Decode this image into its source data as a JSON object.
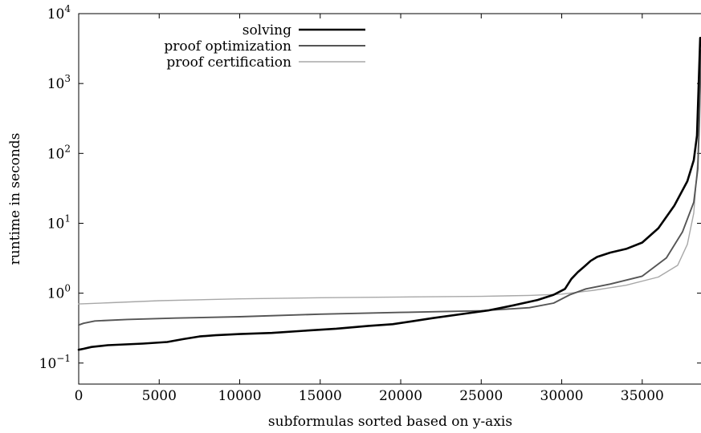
{
  "chart_data": {
    "type": "line",
    "title": "",
    "xlabel": "subformulas sorted based on y-axis",
    "ylabel": "runtime in seconds",
    "yscale": "log",
    "xlim": [
      0,
      38700
    ],
    "ylim": [
      0.05,
      10000
    ],
    "x_ticks": [
      0,
      5000,
      10000,
      15000,
      20000,
      25000,
      30000,
      35000
    ],
    "y_ticks": [
      {
        "value": 0.1,
        "base": "10",
        "exp": "−1"
      },
      {
        "value": 1,
        "base": "10",
        "exp": "0"
      },
      {
        "value": 10,
        "base": "10",
        "exp": "1"
      },
      {
        "value": 100,
        "base": "10",
        "exp": "2"
      },
      {
        "value": 1000,
        "base": "10",
        "exp": "3"
      },
      {
        "value": 10000,
        "base": "10",
        "exp": "4"
      }
    ],
    "grid": false,
    "legend_position": "top-left",
    "series": [
      {
        "name": "solving",
        "color": "#000000",
        "width": 2.6,
        "x": [
          0,
          300,
          800,
          1800,
          4000,
          5500,
          6500,
          7500,
          8500,
          10000,
          12000,
          14000,
          16000,
          18000,
          19500,
          20500,
          22000,
          24000,
          25500,
          27000,
          28500,
          29500,
          30200,
          30600,
          31000,
          31400,
          31800,
          32200,
          33000,
          34000,
          35000,
          36000,
          37000,
          37800,
          38200,
          38400,
          38500,
          38600
        ],
        "y": [
          0.155,
          0.16,
          0.17,
          0.18,
          0.19,
          0.2,
          0.22,
          0.24,
          0.25,
          0.26,
          0.27,
          0.29,
          0.31,
          0.34,
          0.36,
          0.39,
          0.44,
          0.51,
          0.57,
          0.67,
          0.8,
          0.95,
          1.15,
          1.6,
          2.0,
          2.4,
          2.9,
          3.3,
          3.8,
          4.3,
          5.3,
          8.5,
          18,
          40,
          80,
          180,
          900,
          4500
        ]
      },
      {
        "name": "proof optimization",
        "color": "#555555",
        "width": 1.9,
        "x": [
          0,
          300,
          1000,
          3000,
          6000,
          10000,
          15000,
          20000,
          25000,
          28000,
          29500,
          30500,
          31500,
          33000,
          35000,
          36500,
          37500,
          38200,
          38450,
          38550,
          38650
        ],
        "y": [
          0.35,
          0.37,
          0.4,
          0.42,
          0.44,
          0.46,
          0.5,
          0.53,
          0.56,
          0.62,
          0.72,
          0.95,
          1.15,
          1.35,
          1.75,
          3.2,
          7.5,
          20,
          60,
          300,
          3000
        ]
      },
      {
        "name": "proof certification",
        "color": "#a8a8a8",
        "width": 1.4,
        "x": [
          0,
          2000,
          5000,
          10000,
          15000,
          20000,
          25000,
          28000,
          30000,
          32000,
          34000,
          36000,
          37200,
          37800,
          38200,
          38450,
          38600,
          38700
        ],
        "y": [
          0.7,
          0.73,
          0.78,
          0.83,
          0.86,
          0.88,
          0.9,
          0.93,
          0.97,
          1.1,
          1.3,
          1.7,
          2.5,
          5,
          14,
          80,
          800,
          4500
        ]
      }
    ]
  }
}
